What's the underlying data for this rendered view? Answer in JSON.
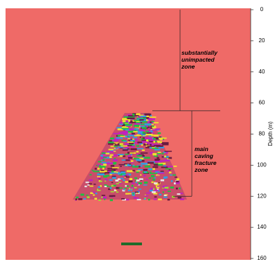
{
  "chart_data": {
    "type": "depth-section",
    "y_label": "Depth (m)",
    "ylim": [
      0,
      160
    ],
    "yticks": [
      0,
      20,
      40,
      60,
      80,
      100,
      120,
      140,
      160
    ],
    "zones": [
      {
        "label": "substantially unimpacted zone",
        "top": 0,
        "bottom": 65
      },
      {
        "label": "main caving fracture zone",
        "top": 65,
        "bottom": 120
      }
    ]
  }
}
